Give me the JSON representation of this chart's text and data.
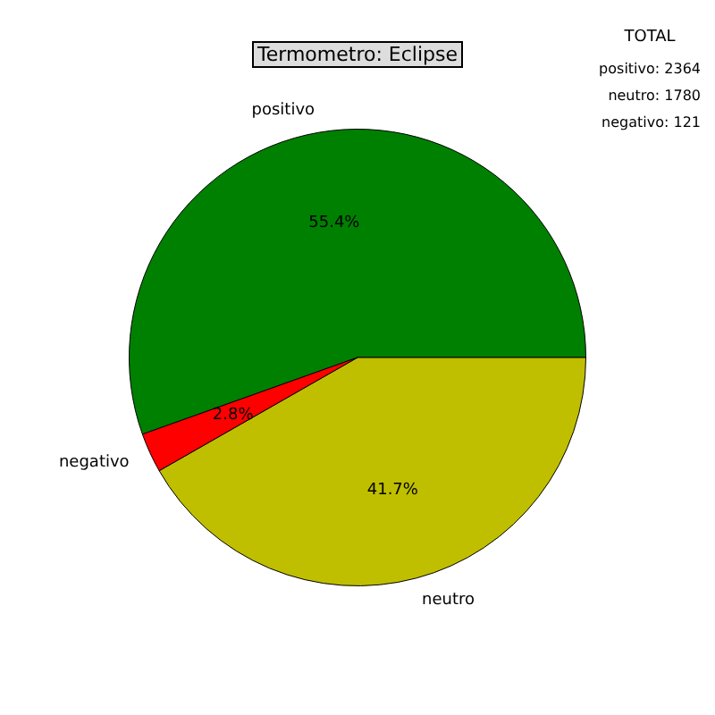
{
  "chart_data": {
    "type": "pie",
    "title": "Termometro: Eclipse",
    "categories": [
      "positivo",
      "neutro",
      "negativo"
    ],
    "values": [
      55.4,
      41.7,
      2.8
    ],
    "value_labels": [
      "55.4%",
      "41.7%",
      "2.8%"
    ],
    "colors": [
      "#008000",
      "#bfbf00",
      "#ff0000"
    ],
    "annotations": [
      "TOTAL",
      "positivo: 2364",
      "neutro: 1780",
      "negativo: 121"
    ],
    "legend": false
  }
}
